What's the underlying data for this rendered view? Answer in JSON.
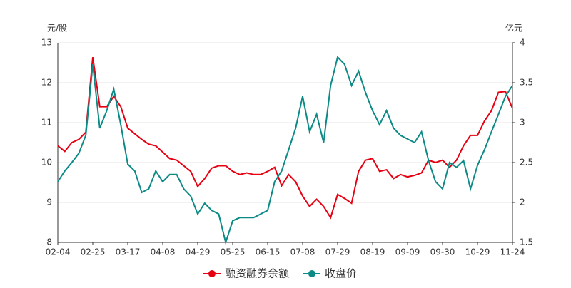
{
  "chart_data": {
    "type": "line",
    "y_label": "元/股",
    "y2_label": "亿元",
    "categories": [
      "02-04",
      null,
      null,
      null,
      null,
      "02-25",
      null,
      null,
      null,
      null,
      "03-17",
      null,
      null,
      null,
      null,
      "04-08",
      null,
      null,
      null,
      null,
      "04-29",
      null,
      null,
      null,
      null,
      "05-25",
      null,
      null,
      null,
      null,
      "06-15",
      null,
      null,
      null,
      null,
      "07-08",
      null,
      null,
      null,
      null,
      "07-29",
      null,
      null,
      null,
      null,
      "08-19",
      null,
      null,
      null,
      null,
      "09-09",
      null,
      null,
      null,
      null,
      "09-30",
      null,
      null,
      null,
      null,
      "10-29",
      null,
      null,
      null,
      null,
      "11-24"
    ],
    "series": [
      {
        "name": "融资融券余额",
        "color": "#e60012",
        "axis": "y2",
        "values": [
          2.71,
          2.64,
          2.75,
          2.79,
          2.88,
          3.82,
          3.2,
          3.2,
          3.33,
          3.2,
          2.93,
          2.86,
          2.79,
          2.73,
          2.71,
          2.63,
          2.55,
          2.53,
          2.46,
          2.39,
          2.2,
          2.3,
          2.43,
          2.46,
          2.46,
          2.39,
          2.35,
          2.37,
          2.35,
          2.35,
          2.39,
          2.44,
          2.21,
          2.35,
          2.26,
          2.08,
          1.95,
          2.04,
          1.95,
          1.81,
          2.1,
          2.05,
          1.99,
          2.39,
          2.53,
          2.55,
          2.39,
          2.41,
          2.3,
          2.35,
          2.32,
          2.34,
          2.37,
          2.53,
          2.5,
          2.53,
          2.44,
          2.53,
          2.71,
          2.84,
          2.84,
          3.02,
          3.15,
          3.38,
          3.39,
          3.18
        ]
      },
      {
        "name": "收盘价",
        "color": "#0c8a86",
        "values": [
          9.52,
          9.79,
          10.0,
          10.23,
          10.68,
          12.46,
          10.86,
          11.3,
          11.84,
          10.95,
          9.96,
          9.79,
          9.25,
          9.34,
          9.79,
          9.52,
          9.7,
          9.7,
          9.34,
          9.16,
          8.71,
          8.98,
          8.8,
          8.71,
          8.0,
          8.54,
          8.62,
          8.62,
          8.62,
          8.71,
          8.8,
          9.52,
          9.79,
          10.32,
          10.86,
          11.66,
          10.77,
          11.21,
          10.5,
          11.93,
          12.64,
          12.46,
          11.93,
          12.29,
          11.75,
          11.3,
          10.95,
          11.3,
          10.86,
          10.68,
          10.59,
          10.5,
          10.77,
          10.05,
          9.52,
          9.34,
          10.0,
          9.88,
          10.05,
          9.34,
          9.93,
          10.32,
          10.77,
          11.21,
          11.66,
          11.93
        ]
      }
    ],
    "ylim": [
      8,
      13
    ],
    "yticks": [
      8,
      9,
      10,
      11,
      12,
      13
    ],
    "y2lim": [
      1.5,
      4
    ],
    "y2ticks": [
      1.5,
      2,
      2.5,
      3,
      3.5,
      4
    ],
    "grid": true
  }
}
